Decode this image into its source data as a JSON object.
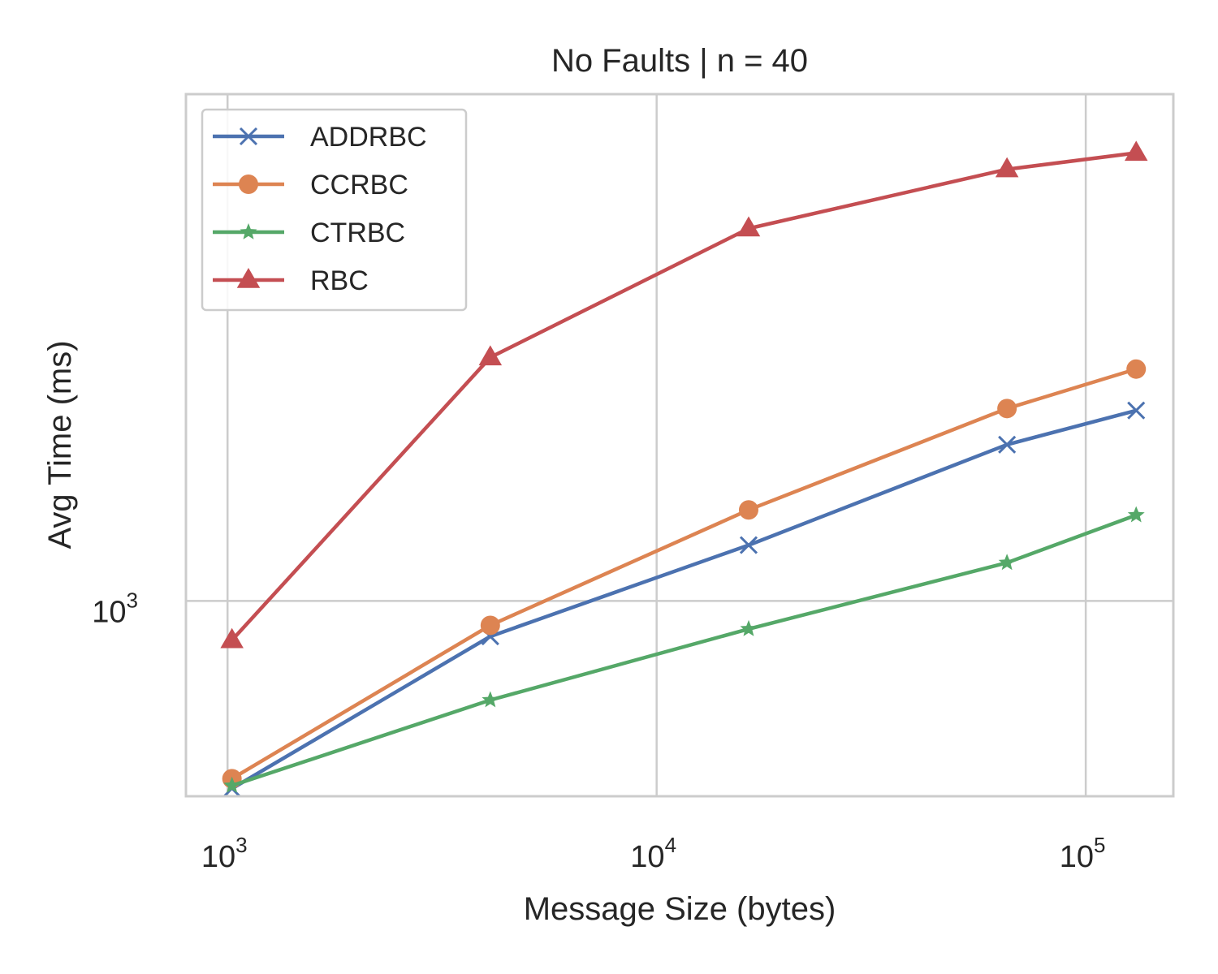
{
  "chart_data": {
    "type": "line",
    "title": "No Faults | n = 40",
    "xlabel": "Message Size (bytes)",
    "ylabel": "Avg Time (ms)",
    "xscale": "log",
    "yscale": "log",
    "xlim": [
      800,
      160000
    ],
    "ylim": [
      560,
      4500
    ],
    "grid": true,
    "legend_position": "top-left",
    "x_ticks": [
      {
        "value": 1000,
        "base": "10",
        "exp": "3"
      },
      {
        "value": 10000,
        "base": "10",
        "exp": "4"
      },
      {
        "value": 100000,
        "base": "10",
        "exp": "5"
      }
    ],
    "y_ticks": [
      {
        "value": 1000,
        "base": "10",
        "exp": "3"
      }
    ],
    "x": [
      1024,
      4096,
      16384,
      65536,
      131072
    ],
    "series": [
      {
        "name": "ADDRBC",
        "color": "#4c72b0",
        "marker": "x",
        "values": [
          573,
          900,
          1180,
          1590,
          1760
        ]
      },
      {
        "name": "CCRBC",
        "color": "#dd8452",
        "marker": "circle",
        "values": [
          590,
          930,
          1310,
          1770,
          1990
        ]
      },
      {
        "name": "CTRBC",
        "color": "#55a868",
        "marker": "star",
        "values": [
          578,
          745,
          920,
          1120,
          1290
        ]
      },
      {
        "name": "RBC",
        "color": "#c44e52",
        "marker": "triangle",
        "values": [
          890,
          2060,
          3020,
          3600,
          3780
        ]
      }
    ]
  }
}
